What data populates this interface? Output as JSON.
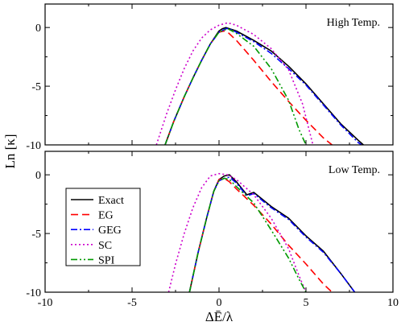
{
  "chart_data": {
    "type": "line",
    "xlabel": "ΔĒ/λ",
    "ylabel": "Ln [κ]",
    "xlim": [
      -10,
      10
    ],
    "ylim": [
      -10,
      2
    ],
    "xticks": [
      -10,
      -5,
      0,
      5,
      10
    ],
    "yticks": [
      0,
      -5,
      -10
    ],
    "legend": {
      "position": "left, lower panel",
      "entries": [
        {
          "name": "Exact",
          "color": "#000000",
          "dash": "solid"
        },
        {
          "name": "EG",
          "color": "#ff0000",
          "dash": "dashed"
        },
        {
          "name": "GEG",
          "color": "#0000ff",
          "dash": "dash-dot"
        },
        {
          "name": "SC",
          "color": "#cc00cc",
          "dash": "dotted"
        },
        {
          "name": "SPI",
          "color": "#009900",
          "dash": "dash-dot-dot"
        }
      ]
    },
    "panels": [
      {
        "title": "High Temp.",
        "series": [
          {
            "name": "Exact",
            "x": [
              -3.1,
              -2.6,
              -2.0,
              -1.5,
              -1.0,
              -0.5,
              0.0,
              0.2,
              0.4,
              1.0,
              2.0,
              3.0,
              4.0,
              5.0,
              6.0,
              7.0,
              8.0,
              8.3
            ],
            "y": [
              -10,
              -8.0,
              -5.9,
              -4.3,
              -2.8,
              -1.4,
              -0.3,
              -0.1,
              0.0,
              -0.3,
              -1.1,
              -2.0,
              -3.3,
              -4.8,
              -6.5,
              -8.2,
              -9.6,
              -10
            ]
          },
          {
            "name": "EG",
            "x": [
              -3.1,
              -2.6,
              -2.0,
              -1.5,
              -1.0,
              -0.5,
              0.0,
              0.3,
              0.5,
              1.0,
              2.0,
              3.0,
              4.0,
              5.0,
              6.0,
              6.5
            ],
            "y": [
              -10,
              -8.0,
              -5.9,
              -4.3,
              -2.8,
              -1.4,
              -0.4,
              -0.3,
              -0.4,
              -1.1,
              -2.8,
              -4.6,
              -6.3,
              -7.9,
              -9.4,
              -10
            ]
          },
          {
            "name": "GEG",
            "x": [
              -3.1,
              -2.6,
              -2.0,
              -1.5,
              -1.0,
              -0.5,
              0.0,
              0.4,
              0.6,
              1.0,
              2.0,
              3.0,
              4.0,
              5.0,
              6.0,
              7.0,
              8.0,
              8.2
            ],
            "y": [
              -10,
              -8.0,
              -5.9,
              -4.3,
              -2.8,
              -1.4,
              -0.4,
              -0.1,
              -0.1,
              -0.4,
              -1.2,
              -2.2,
              -3.5,
              -4.9,
              -6.6,
              -8.3,
              -9.8,
              -10
            ]
          },
          {
            "name": "SC",
            "x": [
              -3.6,
              -3.0,
              -2.5,
              -2.0,
              -1.5,
              -1.0,
              -0.5,
              0.0,
              0.5,
              1.0,
              2.0,
              3.0,
              4.0,
              4.8,
              5.4
            ],
            "y": [
              -10,
              -7.3,
              -5.3,
              -3.5,
              -2.0,
              -0.9,
              -0.2,
              0.2,
              0.4,
              0.2,
              -0.6,
              -1.8,
              -3.6,
              -6.5,
              -10
            ]
          },
          {
            "name": "SPI",
            "x": [
              -3.1,
              -2.6,
              -2.0,
              -1.5,
              -1.0,
              -0.5,
              0.0,
              0.5,
              1.0,
              2.0,
              3.0,
              4.0,
              4.6,
              5.0
            ],
            "y": [
              -10,
              -8.0,
              -5.9,
              -4.3,
              -2.8,
              -1.4,
              -0.4,
              -0.1,
              -0.5,
              -1.6,
              -3.5,
              -6.2,
              -8.7,
              -10
            ]
          }
        ]
      },
      {
        "title": "Low Temp.",
        "series": [
          {
            "name": "Exact",
            "x": [
              -1.7,
              -1.2,
              -0.7,
              -0.3,
              0.0,
              0.3,
              0.6,
              1.0,
              1.6,
              2.0,
              3.0,
              4.0,
              5.0,
              6.0,
              7.0,
              7.8
            ],
            "y": [
              -10,
              -6.6,
              -3.6,
              -1.4,
              -0.4,
              -0.1,
              0.0,
              -0.6,
              -1.7,
              -1.5,
              -2.7,
              -3.7,
              -5.2,
              -6.5,
              -8.4,
              -10
            ]
          },
          {
            "name": "EG",
            "x": [
              -1.7,
              -1.2,
              -0.7,
              -0.3,
              0.0,
              0.3,
              0.6,
              1.0,
              2.0,
              3.0,
              4.0,
              5.0,
              6.0,
              6.5
            ],
            "y": [
              -10,
              -6.6,
              -3.6,
              -1.4,
              -0.4,
              -0.3,
              -0.6,
              -1.2,
              -2.6,
              -4.2,
              -6.0,
              -7.6,
              -9.3,
              -10
            ]
          },
          {
            "name": "GEG",
            "x": [
              -1.7,
              -1.2,
              -0.7,
              -0.3,
              0.0,
              0.3,
              0.6,
              1.0,
              1.6,
              2.0,
              3.0,
              4.0,
              5.0,
              6.0,
              7.0,
              7.8
            ],
            "y": [
              -10,
              -6.6,
              -3.6,
              -1.4,
              -0.5,
              -0.3,
              -0.2,
              -0.7,
              -1.8,
              -1.6,
              -2.8,
              -3.8,
              -5.3,
              -6.6,
              -8.4,
              -10
            ]
          },
          {
            "name": "SC",
            "x": [
              -2.9,
              -2.5,
              -2.0,
              -1.5,
              -1.0,
              -0.5,
              0.0,
              0.5,
              1.0,
              2.0,
              3.0,
              4.0,
              4.6,
              5.0
            ],
            "y": [
              -10,
              -7.6,
              -5.0,
              -2.8,
              -1.1,
              -0.1,
              0.1,
              0.0,
              -0.4,
              -1.7,
              -3.7,
              -6.3,
              -8.6,
              -10
            ]
          },
          {
            "name": "SPI",
            "x": [
              -1.7,
              -1.2,
              -0.7,
              -0.3,
              0.0,
              0.3,
              0.6,
              1.0,
              2.0,
              3.0,
              4.0,
              4.6,
              5.0
            ],
            "y": [
              -10,
              -6.6,
              -3.6,
              -1.4,
              -0.5,
              -0.3,
              -0.4,
              -1.0,
              -2.4,
              -4.7,
              -7.1,
              -8.9,
              -10
            ]
          }
        ]
      }
    ]
  }
}
